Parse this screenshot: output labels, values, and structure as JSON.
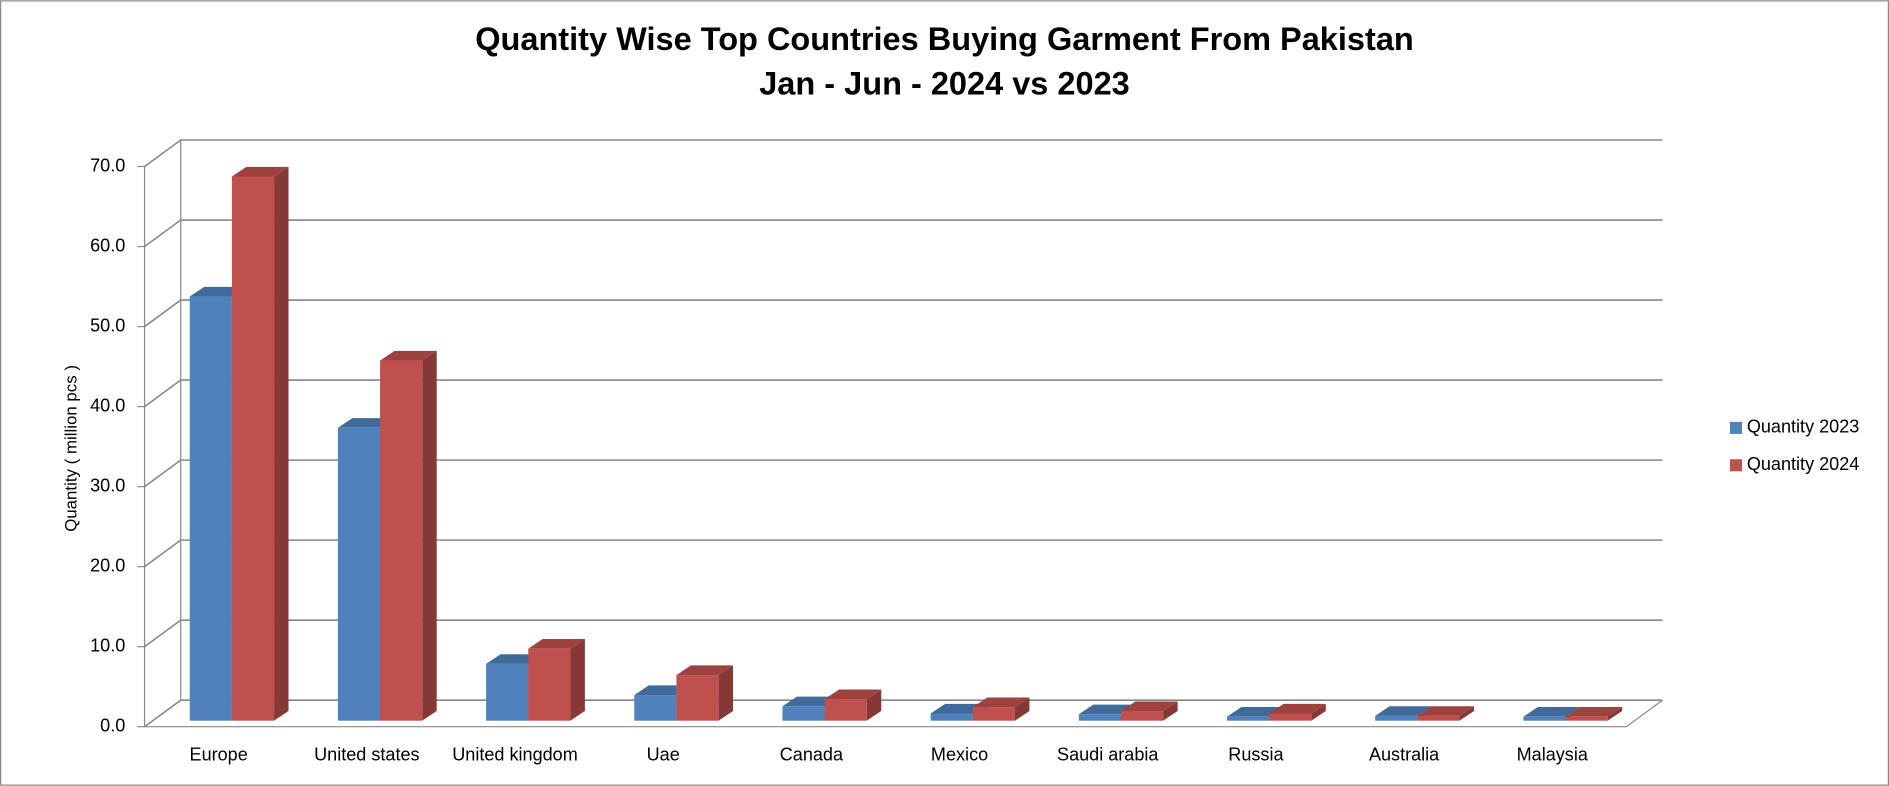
{
  "chart_data": {
    "type": "bar3d",
    "title": "Quantity Wise Top Countries Buying Garment From Pakistan",
    "subtitle": "Jan - Jun - 2024 vs 2023",
    "y_label": "Quantity ( million pcs )",
    "categories": [
      "Europe",
      "United states",
      "United kingdom",
      "Uae",
      "Canada",
      "Mexico",
      "Saudi arabia",
      "Russia",
      "Australia",
      "Malaysia"
    ],
    "series": [
      {
        "name": "Quantity 2023",
        "color": "#4f81bd",
        "values": [
          53.0,
          36.6,
          7.1,
          3.2,
          1.8,
          0.9,
          0.8,
          0.5,
          0.6,
          0.5
        ]
      },
      {
        "name": "Quantity 2024",
        "color": "#c0504d",
        "values": [
          68.0,
          45.0,
          9.0,
          5.7,
          2.7,
          1.7,
          1.2,
          0.9,
          0.6,
          0.5
        ]
      }
    ],
    "ylim": [
      0,
      70
    ],
    "yticks": [
      {
        "value": 0,
        "label": "0.0"
      },
      {
        "value": 10,
        "label": "10.0"
      },
      {
        "value": 20,
        "label": "20.0"
      },
      {
        "value": 30,
        "label": "30.0"
      },
      {
        "value": 40,
        "label": "40.0"
      },
      {
        "value": 50,
        "label": "50.0"
      },
      {
        "value": 60,
        "label": "60.0"
      },
      {
        "value": 70,
        "label": "70.0"
      }
    ],
    "grid": true,
    "legend": "right"
  }
}
